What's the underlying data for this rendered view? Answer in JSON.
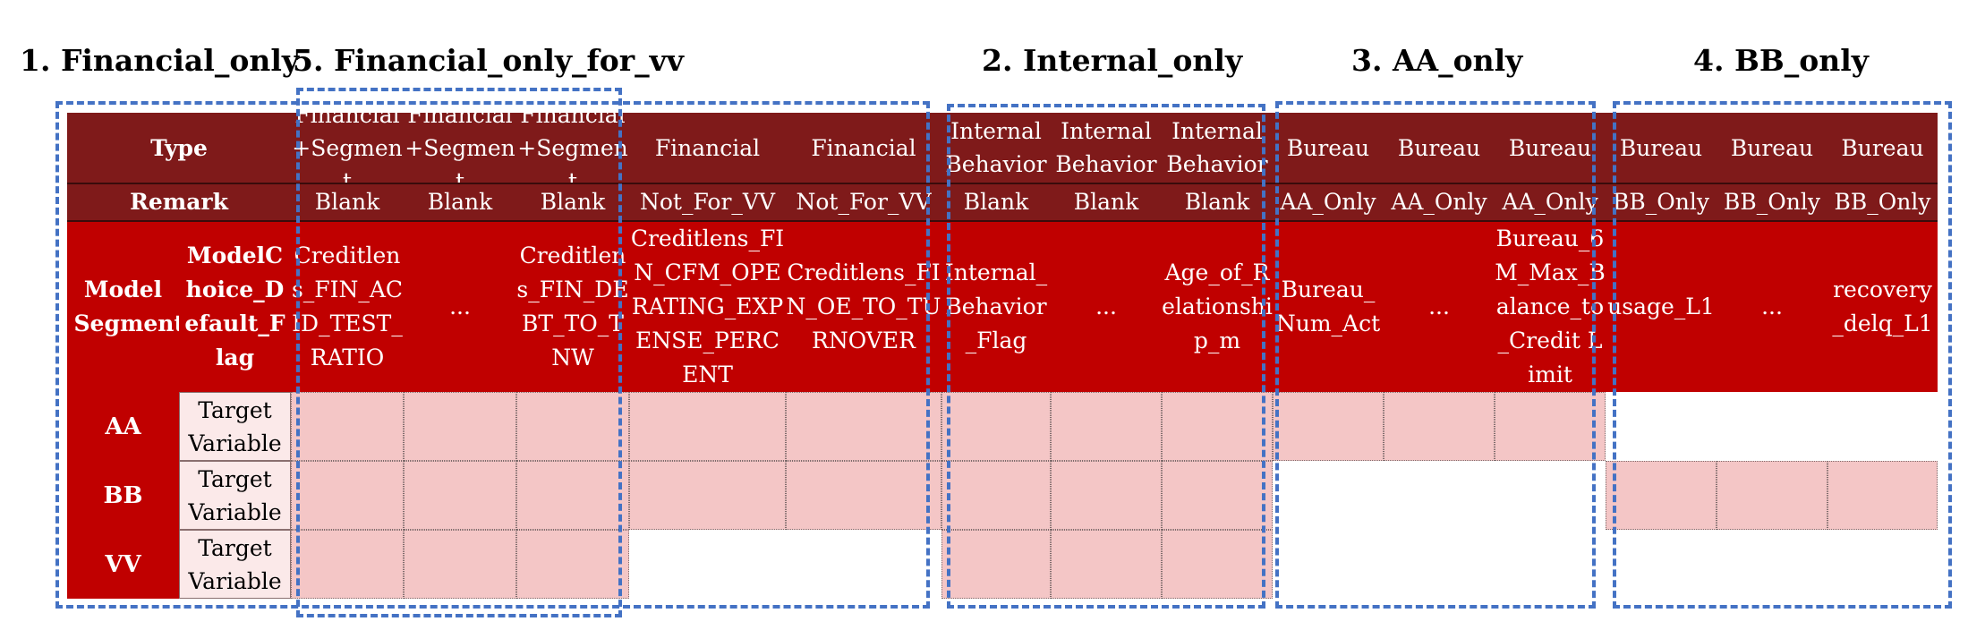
{
  "group_titles": {
    "g1": "1. Financial_only",
    "g5": "5. Financial_only_for_vv",
    "g2": "2. Internal_only",
    "g3": "3. AA_only",
    "g4": "4. BB_only"
  },
  "row_labels": {
    "type": "Type",
    "remark": "Remark",
    "model_segment": "Model Segment",
    "flag": "ModelChoice_Default_Flag"
  },
  "columns": [
    {
      "type": "Financial +Segment",
      "remark": "Blank",
      "variable": "Creditlens_FIN_ACID_TEST_RATIO"
    },
    {
      "type": "Financial +Segment",
      "remark": "Blank",
      "variable": "..."
    },
    {
      "type": "Financial +Segment",
      "remark": "Blank",
      "variable": "Creditlens_FIN_DEBT_TO_TNW"
    },
    {
      "type": "Financial",
      "remark": "Not_For_VV",
      "variable": "Creditlens_FIN_CFM_OPERATING_EXPENSE_PERCENT"
    },
    {
      "type": "Financial",
      "remark": "Not_For_VV",
      "variable": "Creditlens_FIN_OE_TO_TURNOVER"
    },
    {
      "type": "Internal Behavior",
      "remark": "Blank",
      "variable": "Internal_Behavior_Flag"
    },
    {
      "type": "Internal Behavior",
      "remark": "Blank",
      "variable": "..."
    },
    {
      "type": "Internal Behavior",
      "remark": "Blank",
      "variable": "Age_of_Relationship_m"
    },
    {
      "type": "Bureau",
      "remark": "AA_Only",
      "variable": "Bureau_Num_Act"
    },
    {
      "type": "Bureau",
      "remark": "AA_Only",
      "variable": "..."
    },
    {
      "type": "Bureau",
      "remark": "AA_Only",
      "variable": "Bureau_6M_Max_Balance_to_Credit Limit"
    },
    {
      "type": "Bureau",
      "remark": "BB_Only",
      "variable": "usage_L1"
    },
    {
      "type": "Bureau",
      "remark": "BB_Only",
      "variable": "..."
    },
    {
      "type": "Bureau",
      "remark": "BB_Only",
      "variable": "recovery_delq_L1"
    }
  ],
  "segments": [
    {
      "name": "AA",
      "target": "Target Variable",
      "filled": [
        true,
        true,
        true,
        true,
        true,
        true,
        true,
        true,
        true,
        true,
        true,
        false,
        false,
        false
      ]
    },
    {
      "name": "BB",
      "target": "Target Variable",
      "filled": [
        true,
        true,
        true,
        true,
        true,
        true,
        true,
        true,
        false,
        false,
        false,
        true,
        true,
        true
      ]
    },
    {
      "name": "VV",
      "target": "Target Variable",
      "filled": [
        true,
        true,
        true,
        false,
        false,
        true,
        true,
        true,
        false,
        false,
        false,
        false,
        false,
        false
      ]
    }
  ],
  "colors": {
    "header_dark_red": "#7f1a1a",
    "variable_red": "#c00000",
    "filled_pink": "#f4c6c6",
    "group_box_blue": "#4472c4"
  }
}
